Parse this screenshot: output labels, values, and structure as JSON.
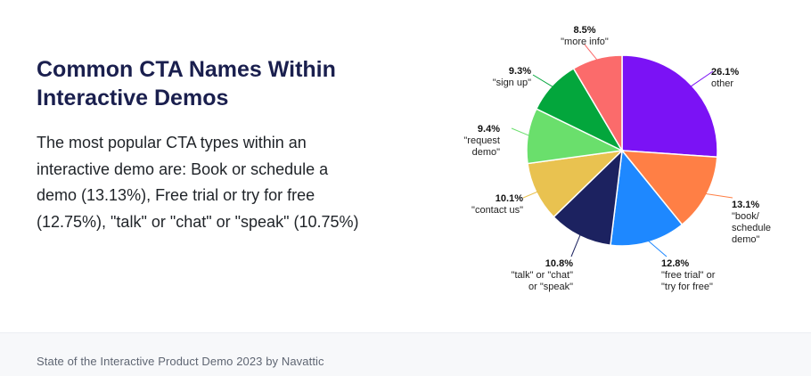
{
  "heading": {
    "title": "Common CTA Names Within Interactive Demos",
    "description": "The most popular CTA types within an interactive demo are: Book or schedule a demo (13.13%), Free trial or try for free (12.75%), \"talk\" or \"chat\" or \"speak\" (10.75%)"
  },
  "footer": {
    "source": "State of the Interactive Product Demo 2023 by Navattic"
  },
  "chart_data": {
    "type": "pie",
    "title": "",
    "slices": [
      {
        "value": 26.1,
        "label": "26.1%",
        "lines": [
          "other"
        ],
        "color": "#7b12f5"
      },
      {
        "value": 13.1,
        "label": "13.1%",
        "lines": [
          "\"book/",
          "schedule",
          "demo\""
        ],
        "color": "#ff7f45"
      },
      {
        "value": 12.8,
        "label": "12.8%",
        "lines": [
          "\"free trial\" or",
          "\"try for free\""
        ],
        "color": "#1e88ff"
      },
      {
        "value": 10.8,
        "label": "10.8%",
        "lines": [
          "\"talk\" or \"chat\"",
          "or \"speak\""
        ],
        "color": "#1c2260"
      },
      {
        "value": 10.1,
        "label": "10.1%",
        "lines": [
          "\"contact us\""
        ],
        "color": "#e9c250"
      },
      {
        "value": 9.4,
        "label": "9.4%",
        "lines": [
          "\"request",
          "demo\""
        ],
        "color": "#6adf6c"
      },
      {
        "value": 9.3,
        "label": "9.3%",
        "lines": [
          "\"sign up\""
        ],
        "color": "#03a63c"
      },
      {
        "value": 8.5,
        "label": "8.5%",
        "lines": [
          "\"more info\""
        ],
        "color": "#fb6b6b"
      }
    ]
  }
}
